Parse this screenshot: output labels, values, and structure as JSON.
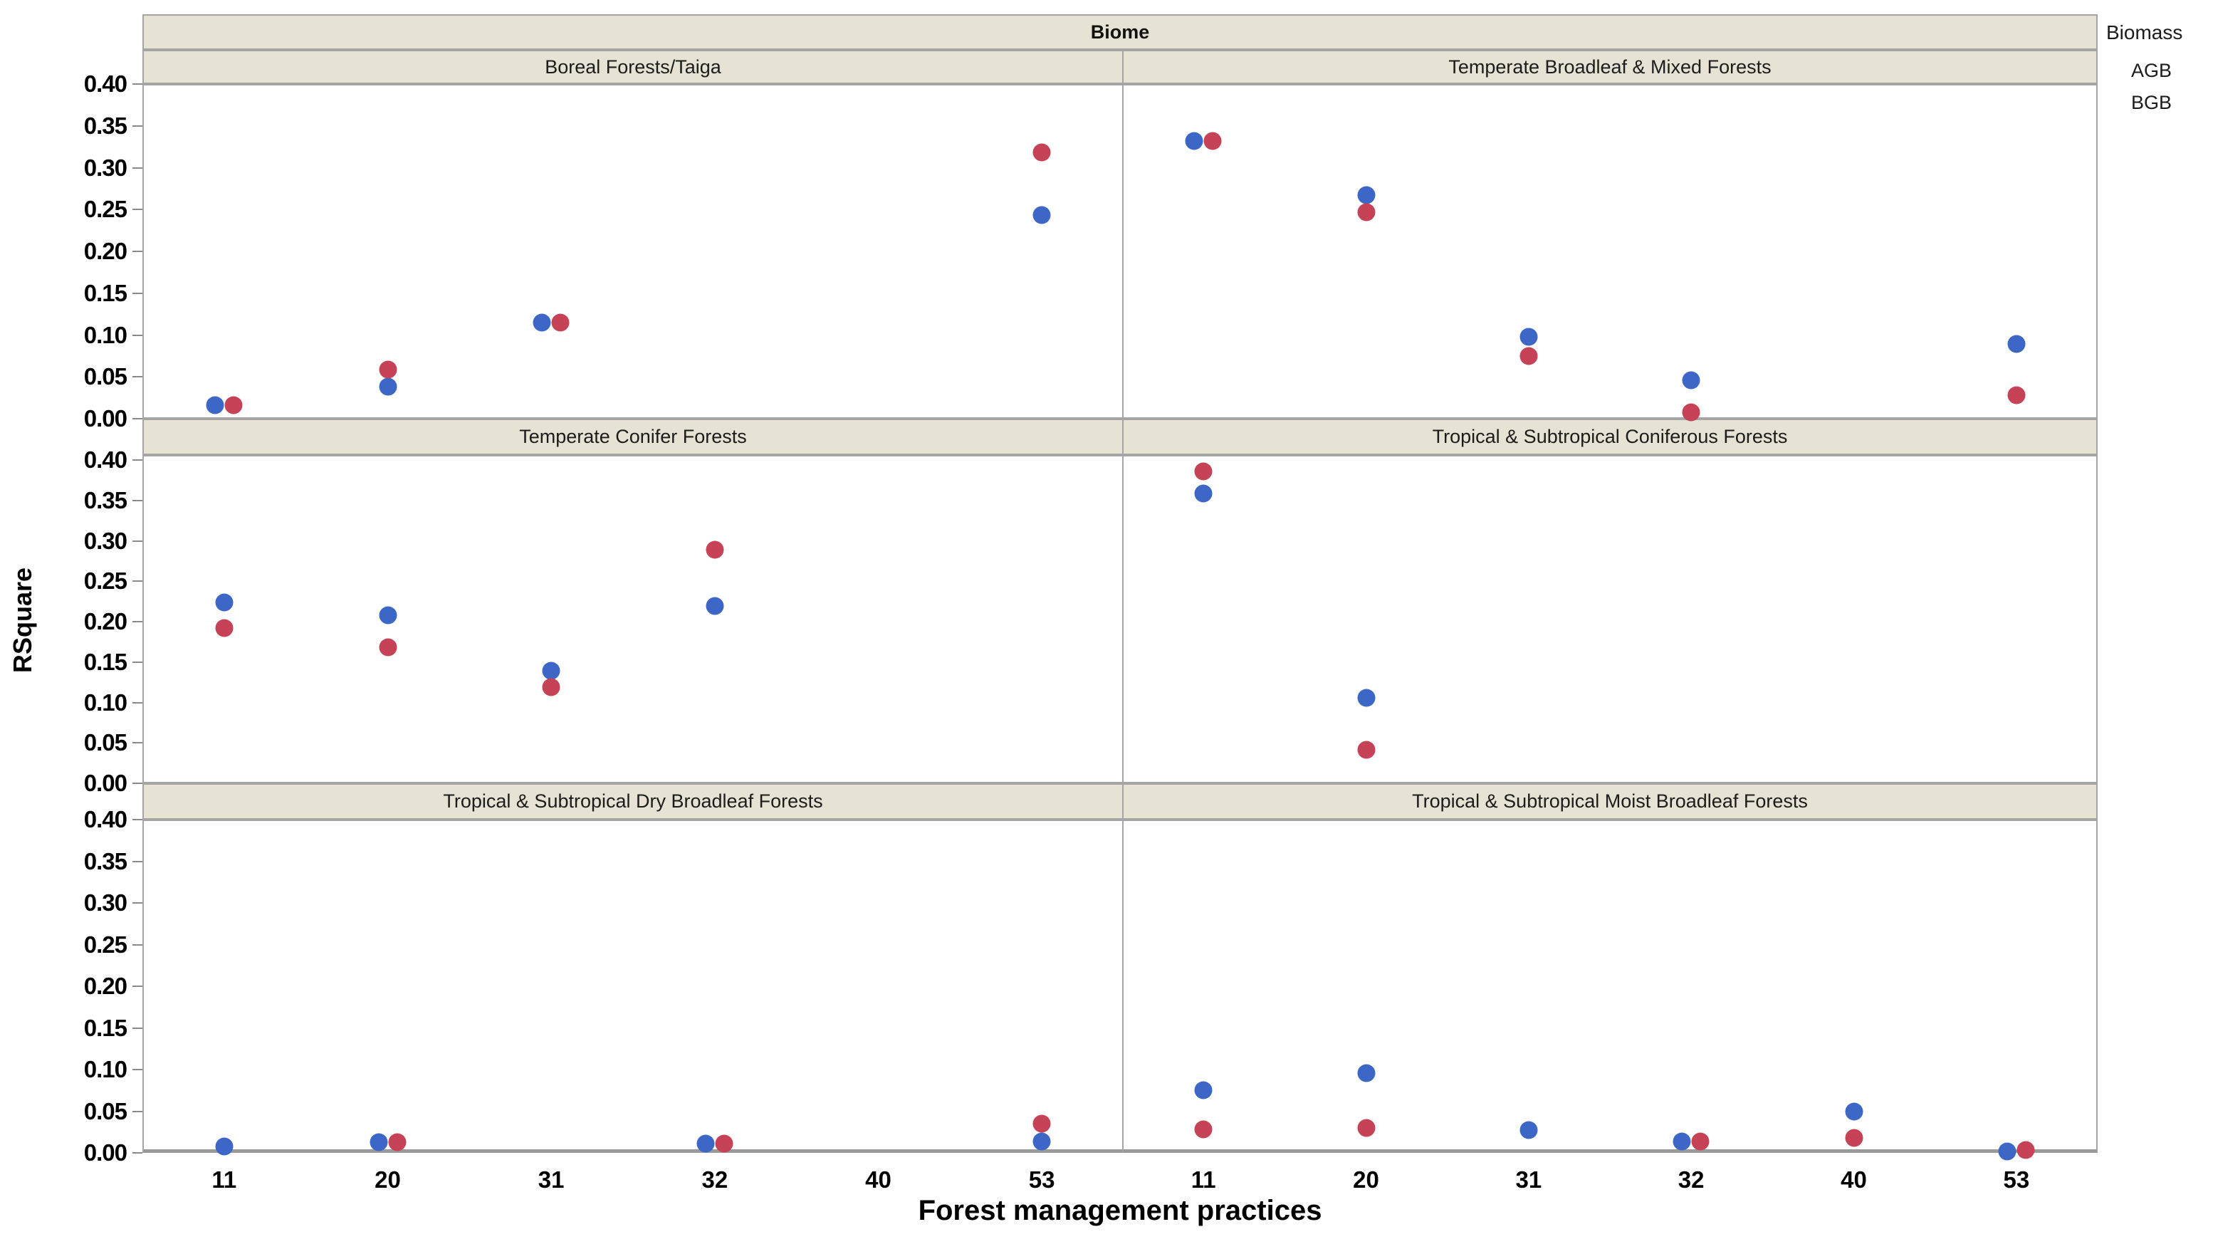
{
  "header": {
    "title": "Biome"
  },
  "legend": {
    "title": "Biomass",
    "items": [
      {
        "label": "AGB",
        "color": "#3C67C6"
      },
      {
        "label": "BGB",
        "color": "#C64256"
      }
    ]
  },
  "axes": {
    "y_label": "RSquare",
    "x_label": "Forest management practices",
    "y_tick_labels": [
      "0.40",
      "0.35",
      "0.30",
      "0.25",
      "0.20",
      "0.15",
      "0.10",
      "0.05",
      "0.00"
    ],
    "x_tick_labels": [
      "11",
      "20",
      "31",
      "32",
      "40",
      "53"
    ]
  },
  "colors": {
    "agb_blue": "#3C67C6",
    "bgb_red": "#C64256",
    "strip_background": "#E6E3D4",
    "panel_border": "#A5A5A5",
    "axis_line": "#9a9a9a"
  },
  "chart_data": {
    "type": "scatter",
    "facet_by": "Biome",
    "title": "Biome",
    "xlabel": "Forest management practices",
    "ylabel": "RSquare",
    "ylim": [
      0.0,
      0.4
    ],
    "y_tick_step": 0.05,
    "x_categories": [
      "11",
      "20",
      "31",
      "32",
      "40",
      "53"
    ],
    "series_names": [
      "AGB",
      "BGB"
    ],
    "legend_position": "top-right",
    "grid": false,
    "panels": [
      {
        "title": "Boreal Forests/Taiga",
        "row": 0,
        "col": 0,
        "points": [
          {
            "x": "11",
            "AGB": 0.016,
            "BGB": 0.016
          },
          {
            "x": "20",
            "AGB": 0.038,
            "BGB": 0.059
          },
          {
            "x": "31",
            "AGB": 0.115,
            "BGB": 0.115
          },
          {
            "x": "53",
            "AGB": 0.243,
            "BGB": 0.318
          }
        ]
      },
      {
        "title": "Temperate Broadleaf & Mixed Forests",
        "row": 0,
        "col": 1,
        "points": [
          {
            "x": "11",
            "AGB": 0.332,
            "BGB": 0.332
          },
          {
            "x": "20",
            "AGB": 0.267,
            "BGB": 0.247
          },
          {
            "x": "31",
            "AGB": 0.098,
            "BGB": 0.075
          },
          {
            "x": "32",
            "AGB": 0.046,
            "BGB": 0.008
          },
          {
            "x": "53",
            "AGB": 0.089,
            "BGB": 0.028
          }
        ]
      },
      {
        "title": "Temperate Conifer Forests",
        "row": 1,
        "col": 0,
        "points": [
          {
            "x": "11",
            "AGB": 0.224,
            "BGB": 0.192
          },
          {
            "x": "20",
            "AGB": 0.208,
            "BGB": 0.168
          },
          {
            "x": "31",
            "AGB": 0.139,
            "BGB": 0.119
          },
          {
            "x": "32",
            "AGB": 0.219,
            "BGB": 0.289
          }
        ]
      },
      {
        "title": "Tropical & Subtropical Coniferous Forests",
        "row": 1,
        "col": 1,
        "points": [
          {
            "x": "11",
            "AGB": 0.359,
            "BGB": 0.386
          },
          {
            "x": "20",
            "AGB": 0.106,
            "BGB": 0.041
          }
        ]
      },
      {
        "title": "Tropical & Subtropical Dry Broadleaf Forests",
        "row": 2,
        "col": 0,
        "points": [
          {
            "x": "11",
            "AGB": 0.008
          },
          {
            "x": "20",
            "AGB": 0.013,
            "BGB": 0.013
          },
          {
            "x": "32",
            "AGB": 0.011,
            "BGB": 0.011
          },
          {
            "x": "53",
            "AGB": 0.014,
            "BGB": 0.035
          }
        ]
      },
      {
        "title": "Tropical & Subtropical Moist Broadleaf Forests",
        "row": 2,
        "col": 1,
        "points": [
          {
            "x": "11",
            "AGB": 0.075,
            "BGB": 0.028
          },
          {
            "x": "20",
            "AGB": 0.096,
            "BGB": 0.03
          },
          {
            "x": "31",
            "AGB": 0.027
          },
          {
            "x": "32",
            "AGB": 0.014,
            "BGB": 0.014
          },
          {
            "x": "40",
            "AGB": 0.05,
            "BGB": 0.018
          },
          {
            "x": "53",
            "AGB": 0.002,
            "BGB": 0.003
          }
        ]
      }
    ]
  }
}
